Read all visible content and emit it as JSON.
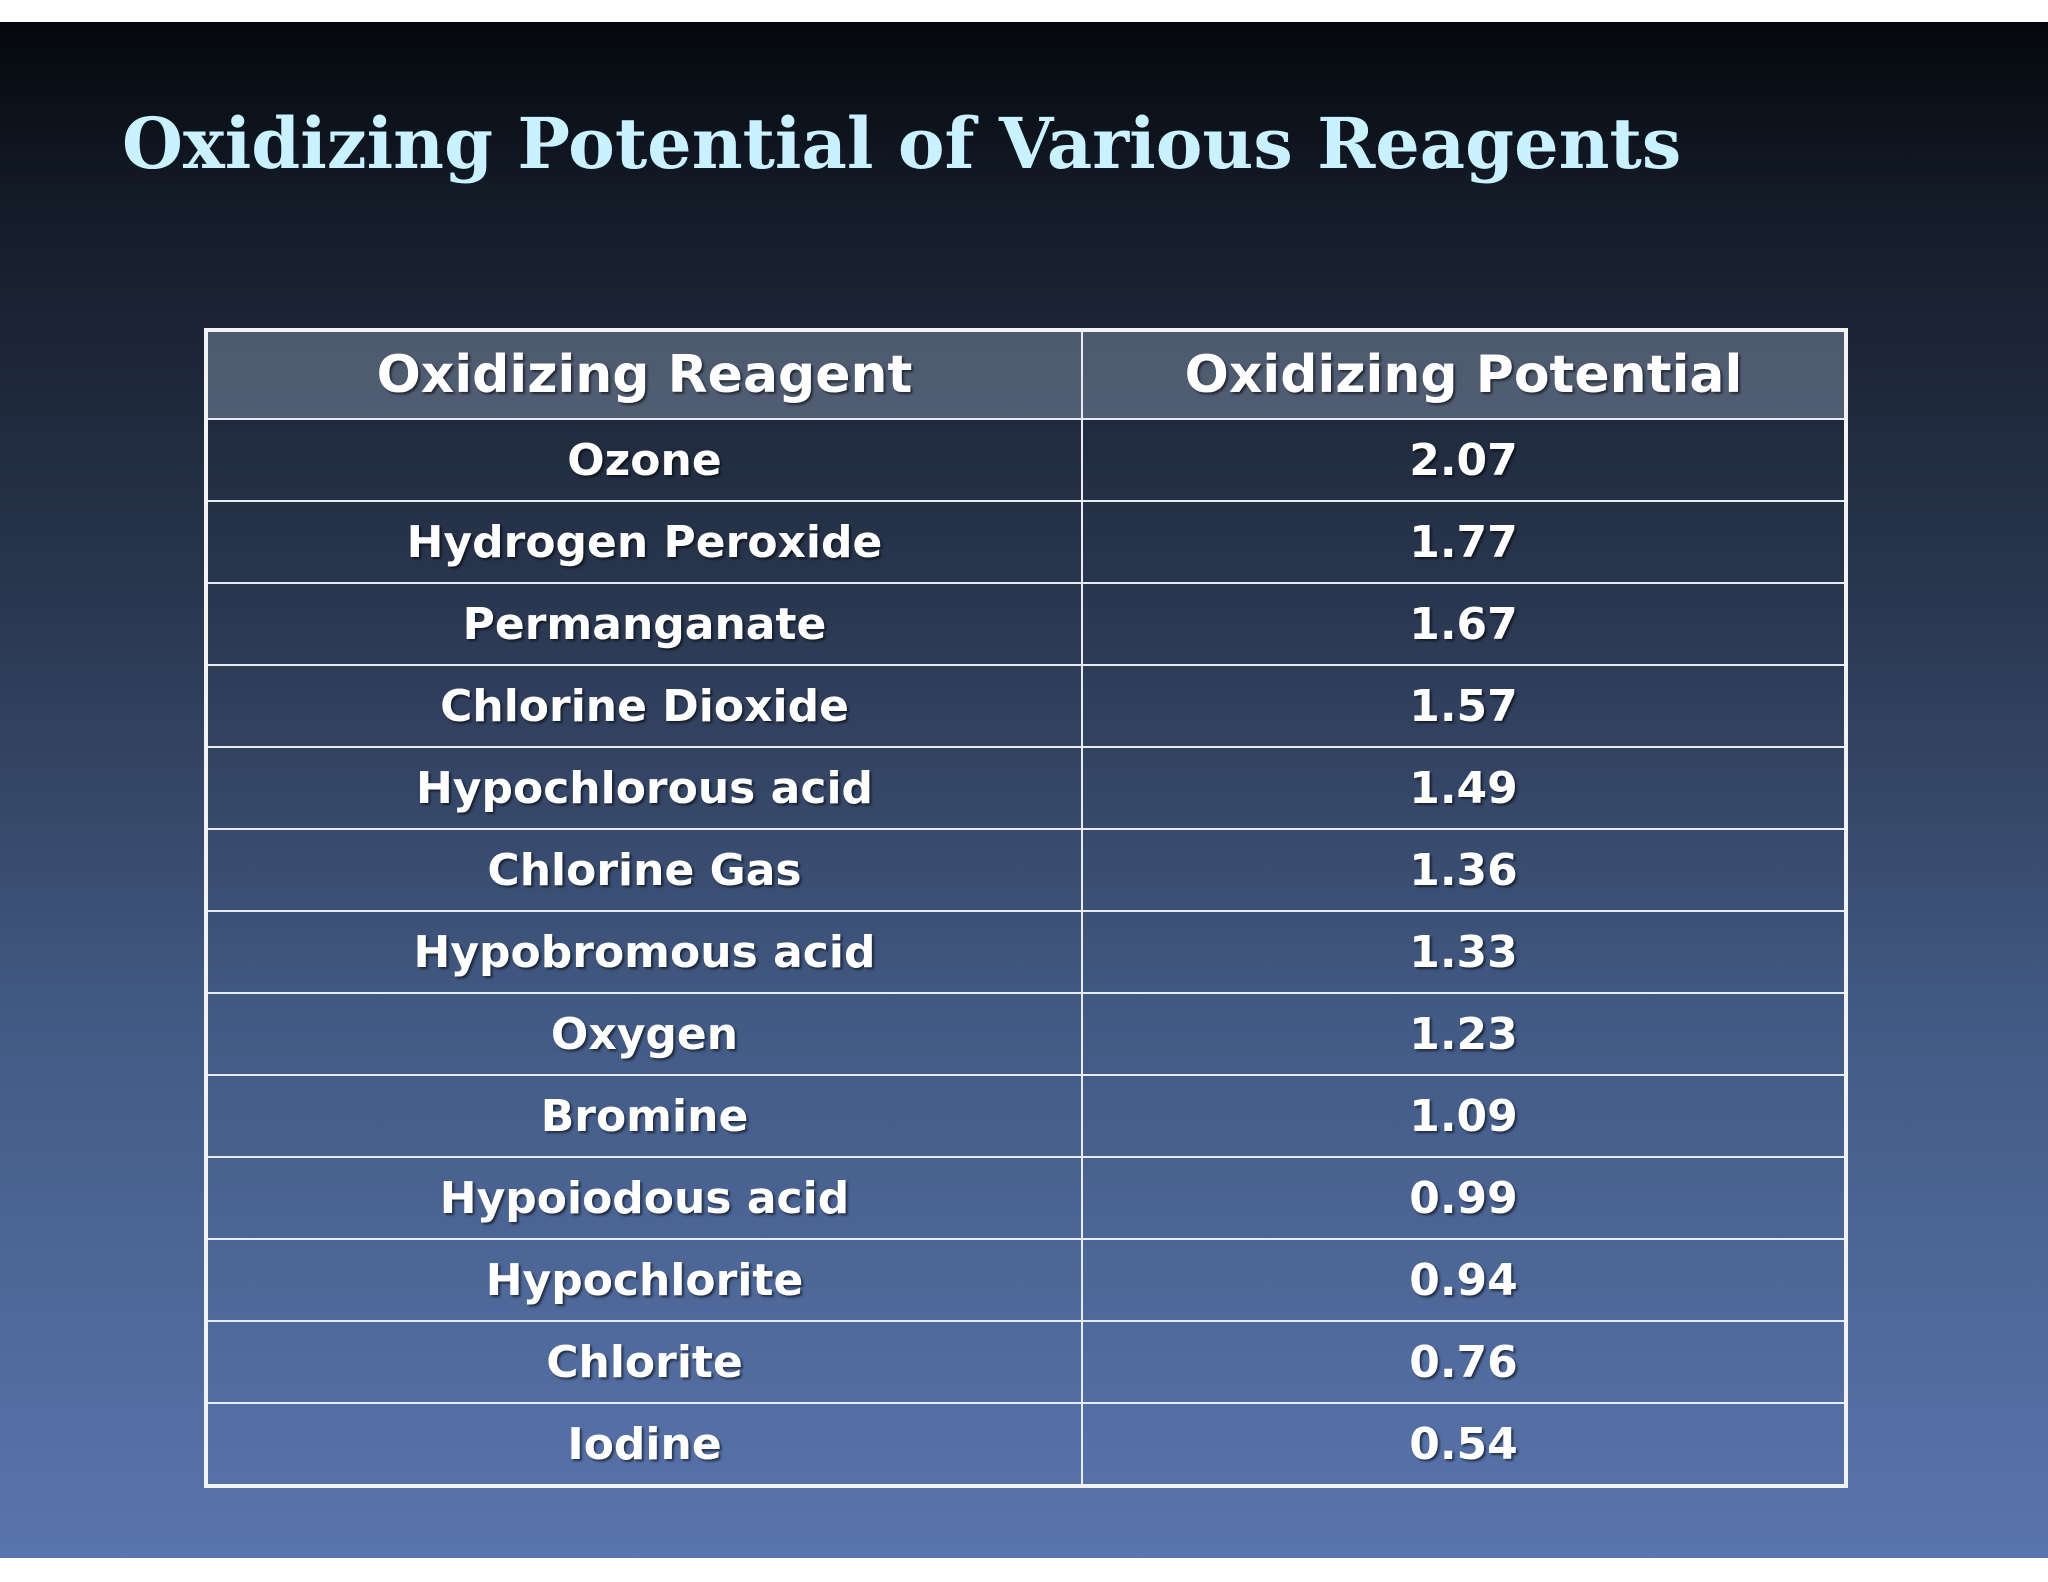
{
  "title": "Oxidizing Potential of Various Reagents",
  "table": {
    "headers": [
      "Oxidizing Reagent",
      "Oxidizing Potential"
    ],
    "rows": [
      [
        "Ozone",
        "2.07"
      ],
      [
        "Hydrogen Peroxide",
        "1.77"
      ],
      [
        "Permanganate",
        "1.67"
      ],
      [
        "Chlorine Dioxide",
        "1.57"
      ],
      [
        "Hypochlorous acid",
        "1.49"
      ],
      [
        "Chlorine Gas",
        "1.36"
      ],
      [
        "Hypobromous acid",
        "1.33"
      ],
      [
        "Oxygen",
        "1.23"
      ],
      [
        "Bromine",
        "1.09"
      ],
      [
        "Hypoiodous acid",
        "0.99"
      ],
      [
        "Hypochlorite",
        "0.94"
      ],
      [
        "Chlorite",
        "0.76"
      ],
      [
        "Iodine",
        "0.54"
      ]
    ]
  },
  "colors": {
    "title": "#c9f1ff",
    "text": "#ffffff",
    "grid": "#e8ecf2"
  }
}
